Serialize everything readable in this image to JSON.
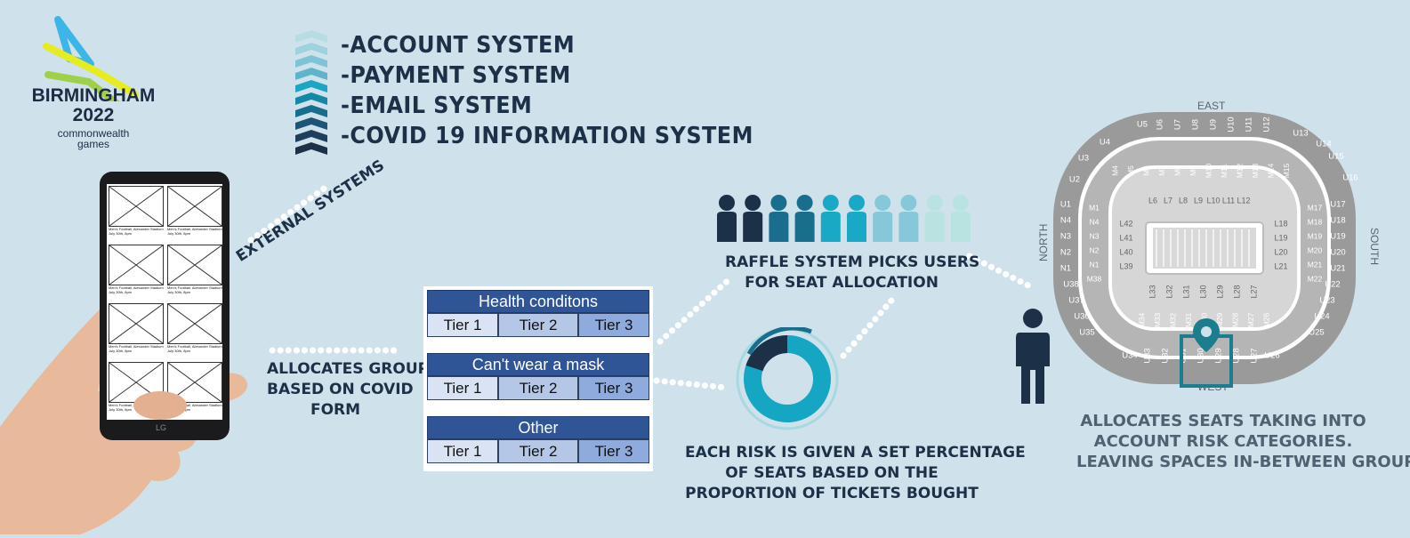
{
  "logo": {
    "line1": "BIRMINGHAM",
    "line2": "2022",
    "line3": "commonwealth",
    "line4": "games",
    "colors": {
      "cyan": "#3bb6e6",
      "yellow": "#e6ec1e",
      "green": "#9fd148"
    }
  },
  "external_systems": {
    "items": [
      "-ACCOUNT SYSTEM",
      "-PAYMENT SYSTEM",
      "-EMAIL SYSTEM",
      "-COVID 19 INFORMATION SYSTEM"
    ],
    "label": "EXTERNAL SYSTEMS",
    "chevron_colors": [
      "#b5dde3",
      "#9fd2df",
      "#7fc4d6",
      "#5fb4cc",
      "#1aa6c4",
      "#1588a8",
      "#1a6e8d",
      "#1e5577",
      "#1f3e5c",
      "#1c3048"
    ]
  },
  "phone": {
    "brand": "LG",
    "listing_title": "Men's Football, Alexander Stadium",
    "listing_date": "July 30th, 8pm"
  },
  "allocation_caption": [
    "ALLOCATES GROUPS",
    "BASED ON COVID",
    "FORM"
  ],
  "risk_tables": [
    {
      "header": "Health conditons",
      "tiers": [
        "Tier 1",
        "Tier 2",
        "Tier 3"
      ]
    },
    {
      "header": "Can't wear a mask",
      "tiers": [
        "Tier 1",
        "Tier 2",
        "Tier 3"
      ]
    },
    {
      "header": "Other",
      "tiers": [
        "Tier 1",
        "Tier 2",
        "Tier 3"
      ]
    }
  ],
  "raffle": {
    "caption": [
      "RAFFLE SYSTEM PICKS USERS",
      "FOR SEAT ALLOCATION"
    ],
    "people_colors": [
      "#1c3048",
      "#1c3048",
      "#1a6e8d",
      "#1a6e8d",
      "#19a9c6",
      "#19a9c6",
      "#86c7d9",
      "#86c7d9",
      "#b8e3e0",
      "#b8e3e0"
    ]
  },
  "risk_percentage": {
    "caption": [
      "EACH RISK IS GIVEN A SET PERCENTAGE",
      "OF SEATS BASED ON THE",
      "PROPORTION OF TICKETS BOUGHT"
    ],
    "donut_colors": {
      "main": "#15a6c4",
      "dark": "#1c3048",
      "ring": "#a9d8e2"
    }
  },
  "stadium": {
    "east": "EAST",
    "west": "WEST",
    "north": "NORTH",
    "south": "SOUTH",
    "upper_east": [
      "U5",
      "U6",
      "U7",
      "U8",
      "U9",
      "U10",
      "U11",
      "U12"
    ],
    "upper_west": [
      "U34",
      "U33",
      "U32",
      "U31",
      "U30",
      "U29",
      "U28",
      "U27",
      "U26"
    ],
    "upper_north": [
      "U1",
      "N4",
      "N3",
      "N2",
      "N1",
      "U38",
      "U37",
      "U36",
      "U35"
    ],
    "upper_south": [
      "U17",
      "U18",
      "U19",
      "U20",
      "U21",
      "U22",
      "U23",
      "U24",
      "U25"
    ],
    "upper_corners": [
      "U4",
      "U3",
      "U2",
      "U13",
      "U14",
      "U15",
      "U16"
    ],
    "middle_east": [
      "M4",
      "M5",
      "M6",
      "M7",
      "M8",
      "M9",
      "M10",
      "M11",
      "M12",
      "M13",
      "M14",
      "M15"
    ],
    "middle_north": [
      "M1",
      "N4",
      "N3",
      "N2",
      "N1",
      "M38"
    ],
    "middle_south": [
      "M17",
      "M18",
      "M19",
      "M20",
      "M21",
      "M22"
    ],
    "middle_west": [
      "M34",
      "M33",
      "M32",
      "M31",
      "M30",
      "M29",
      "M28",
      "M27",
      "M26"
    ],
    "lower_east": [
      "L6",
      "L7",
      "L8",
      "L9",
      "L10",
      "L11",
      "L12"
    ],
    "lower_north": [
      "L42",
      "L41",
      "L40",
      "L39"
    ],
    "lower_south": [
      "L18",
      "L19",
      "L20",
      "L21"
    ],
    "lower_west": [
      "L33",
      "L32",
      "L31",
      "L30",
      "L29",
      "L28",
      "L27"
    ],
    "caption": [
      "ALLOCATES SEATS TAKING INTO",
      "ACCOUNT RISK CATEGORIES.",
      "LEAVING SPACES IN-BETWEEN GROUPS"
    ]
  }
}
